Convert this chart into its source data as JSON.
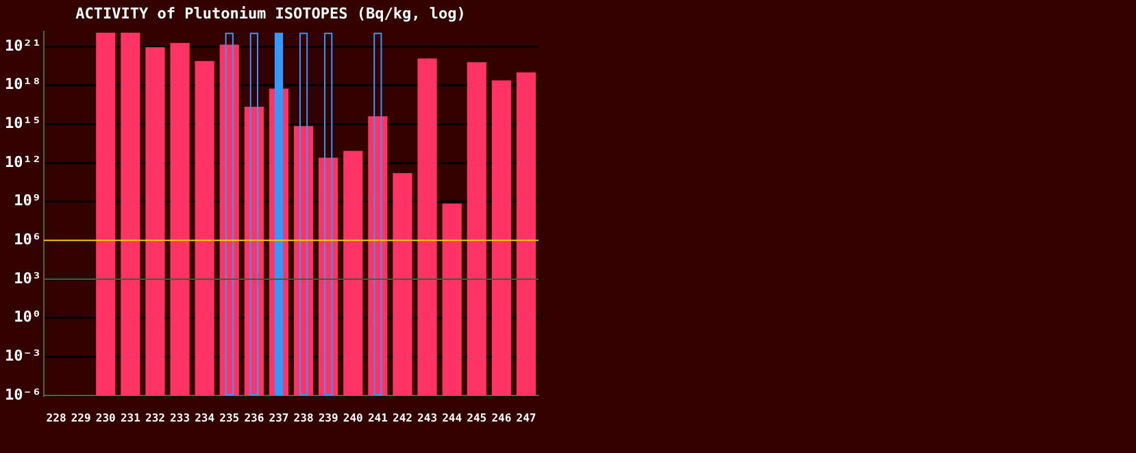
{
  "chart_data": {
    "type": "bar",
    "title": "ACTIVITY of Plutonium ISOTOPES (Bq/kg, log)",
    "categories": [
      "228",
      "229",
      "230",
      "231",
      "232",
      "233",
      "234",
      "235",
      "236",
      "237",
      "238",
      "239",
      "240",
      "241",
      "242",
      "243",
      "244",
      "245",
      "246",
      "247"
    ],
    "series": [
      {
        "color": "#ff3366",
        "values": [
          null,
          null,
          1.2e+22,
          1.2e+22,
          9e+20,
          1.9e+21,
          7.5e+19,
          1.4e+21,
          2.2e+16,
          5.5e+17,
          700000000000000.0,
          2500000000000.0,
          8500000000000.0,
          4000000000000000.0,
          160000000000.0,
          1.2e+20,
          700000000.0,
          6e+19,
          2.4e+18,
          1e+19
        ]
      },
      {
        "color": "#3399ff",
        "line_style": "solid",
        "values": [
          null,
          null,
          null,
          null,
          null,
          null,
          null,
          1.2e+22,
          1.2e+22,
          null,
          1.2e+22,
          1.2e+22,
          null,
          1.2e+22,
          null,
          null,
          null,
          null,
          null,
          null
        ]
      },
      {
        "color": "#3399ff",
        "values": [
          null,
          null,
          null,
          null,
          null,
          null,
          null,
          null,
          null,
          1.2e+22,
          null,
          null,
          null,
          null,
          null,
          null,
          null,
          null,
          null,
          null
        ]
      }
    ],
    "log": true,
    "ylim": [
      1e-06,
      1.4e+22
    ],
    "yticks": [
      {
        "value": 1e-06,
        "label": "10⁻⁶"
      },
      {
        "value": 0.001,
        "label": "10⁻³"
      },
      {
        "value": 1,
        "label": "10⁰"
      },
      {
        "value": 1000.0,
        "label": "10³"
      },
      {
        "value": 1000000.0,
        "label": "10⁶"
      },
      {
        "value": 1000000000.0,
        "label": "10⁹"
      },
      {
        "value": 1000000000000.0,
        "label": "10¹²"
      },
      {
        "value": 1000000000000000.0,
        "label": "10¹⁵"
      },
      {
        "value": 1e+18,
        "label": "10¹⁸"
      },
      {
        "value": 1e+21,
        "label": "10²¹"
      }
    ],
    "ref_lines": [
      {
        "axis": "y",
        "value": 1000000.0,
        "color": "#ffcc00"
      },
      {
        "axis": "y",
        "value": 1000.0,
        "color": "#336633"
      }
    ],
    "grid": "y",
    "legend": false
  }
}
